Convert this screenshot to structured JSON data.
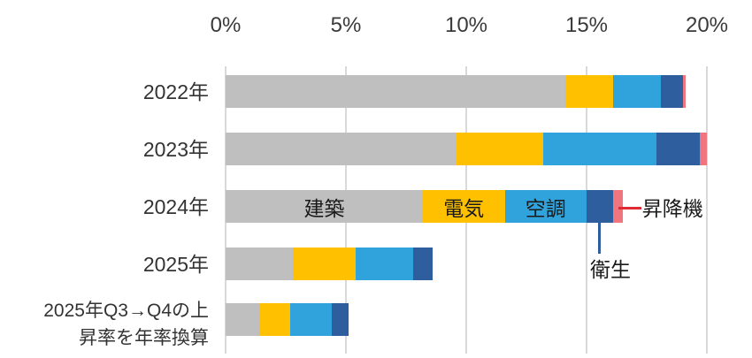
{
  "chart_data": {
    "type": "bar",
    "orientation": "horizontal-stacked",
    "title": "",
    "xlabel": "",
    "ylabel": "",
    "xlim": [
      0,
      20
    ],
    "grid": true,
    "x_ticks": [
      "0%",
      "5%",
      "10%",
      "15%",
      "20%"
    ],
    "x_tick_values": [
      0,
      5,
      10,
      15,
      20
    ],
    "categories": [
      {
        "label": "2022年",
        "lines": [
          "2022年"
        ]
      },
      {
        "label": "2023年",
        "lines": [
          "2023年"
        ]
      },
      {
        "label": "2024年",
        "lines": [
          "2024年"
        ]
      },
      {
        "label": "2025年",
        "lines": [
          "2025年"
        ]
      },
      {
        "label": "2025年Q3→Q4の上昇率を年率換算",
        "lines": [
          "2025年Q3→Q4の上",
          "昇率を年率換算"
        ]
      }
    ],
    "series": [
      {
        "name": "建築",
        "color": "#bfbfbf",
        "values": [
          14.1,
          9.6,
          8.2,
          2.8,
          1.4
        ]
      },
      {
        "name": "電気",
        "color": "#ffc000",
        "values": [
          2.0,
          3.6,
          3.4,
          2.6,
          1.3
        ]
      },
      {
        "name": "空調",
        "color": "#31a3dc",
        "values": [
          2.0,
          4.7,
          3.4,
          2.4,
          1.7
        ]
      },
      {
        "name": "衛生",
        "color": "#2e5e9e",
        "values": [
          0.9,
          1.8,
          1.1,
          0.8,
          0.7
        ]
      },
      {
        "name": "昇降機",
        "color": "#f0757e",
        "values": [
          0.1,
          0.3,
          0.4,
          0.0,
          0.0
        ]
      }
    ],
    "annotations": {
      "inline_label_row": 2,
      "inline_label_series": [
        "建築",
        "電気",
        "空調"
      ],
      "eisei": {
        "label": "衛生",
        "series": "衛生",
        "row": 2,
        "line_color": "#2e5e9e"
      },
      "shokoki": {
        "label": "昇降機",
        "series": "昇降機",
        "row": 2,
        "line_color": "#e02b35"
      }
    },
    "colors": {
      "gridline": "#d9d9d9",
      "tick_text": "#3a3a3a",
      "label_text": "#333333",
      "red_callout": "#e02b35",
      "blue_callout": "#2e5e9e"
    }
  }
}
